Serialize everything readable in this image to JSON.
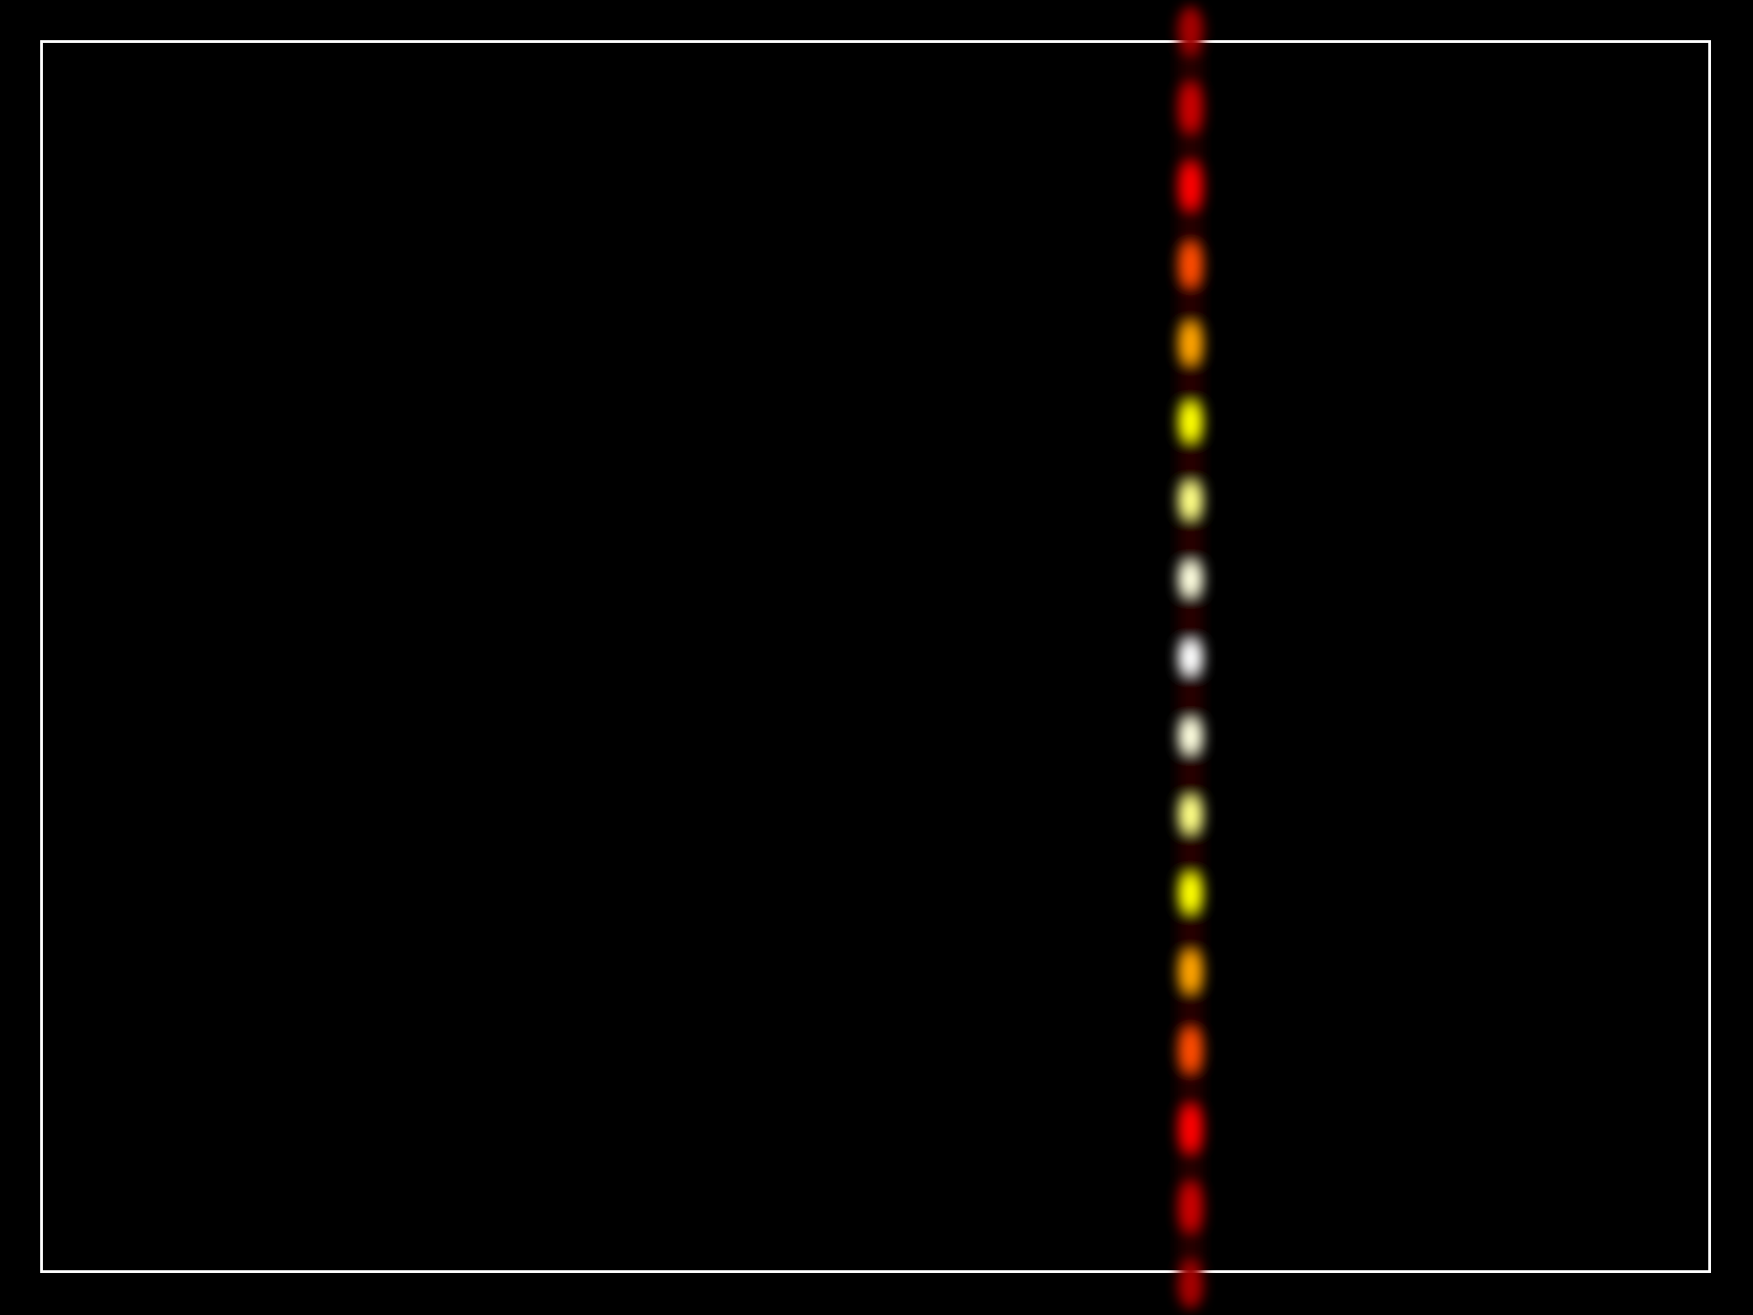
{
  "image": {
    "background_color": "#000000",
    "frame_color": "#ffffff",
    "colormap": "hot",
    "fringe_count": 16
  }
}
